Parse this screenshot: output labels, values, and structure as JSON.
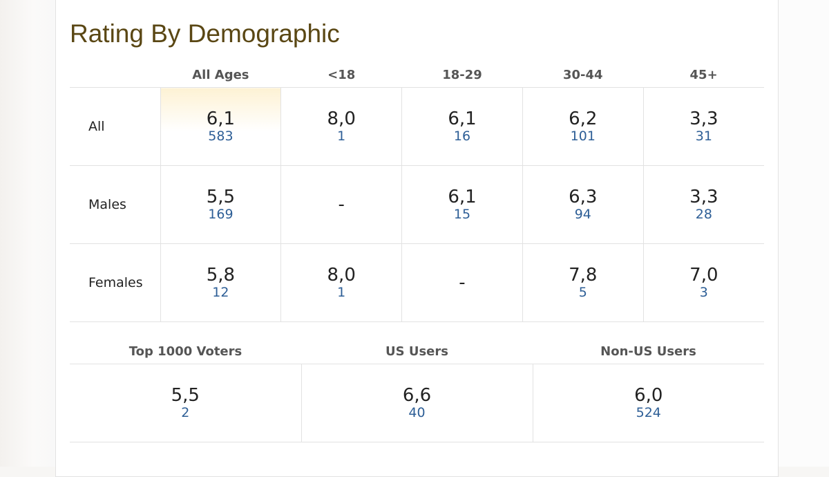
{
  "title": "Rating By Demographic",
  "columns": [
    "All Ages",
    "<18",
    "18-29",
    "30-44",
    "45+"
  ],
  "rows": [
    {
      "label": "All",
      "cells": [
        {
          "rating": "6,1",
          "votes": "583"
        },
        {
          "rating": "8,0",
          "votes": "1"
        },
        {
          "rating": "6,1",
          "votes": "16"
        },
        {
          "rating": "6,2",
          "votes": "101"
        },
        {
          "rating": "3,3",
          "votes": "31"
        }
      ]
    },
    {
      "label": "Males",
      "cells": [
        {
          "rating": "5,5",
          "votes": "169"
        },
        {
          "rating": "-",
          "votes": null
        },
        {
          "rating": "6,1",
          "votes": "15"
        },
        {
          "rating": "6,3",
          "votes": "94"
        },
        {
          "rating": "3,3",
          "votes": "28"
        }
      ]
    },
    {
      "label": "Females",
      "cells": [
        {
          "rating": "5,8",
          "votes": "12"
        },
        {
          "rating": "8,0",
          "votes": "1"
        },
        {
          "rating": "-",
          "votes": null
        },
        {
          "rating": "7,8",
          "votes": "5"
        },
        {
          "rating": "7,0",
          "votes": "3"
        }
      ]
    }
  ],
  "extra": {
    "columns": [
      "Top 1000 Voters",
      "US Users",
      "Non-US Users"
    ],
    "cells": [
      {
        "rating": "5,5",
        "votes": "2"
      },
      {
        "rating": "6,6",
        "votes": "40"
      },
      {
        "rating": "6,0",
        "votes": "524"
      }
    ]
  },
  "colors": {
    "title": "#5a4714",
    "votes_link": "#2d5e96",
    "highlight": "#fdf2d4"
  }
}
